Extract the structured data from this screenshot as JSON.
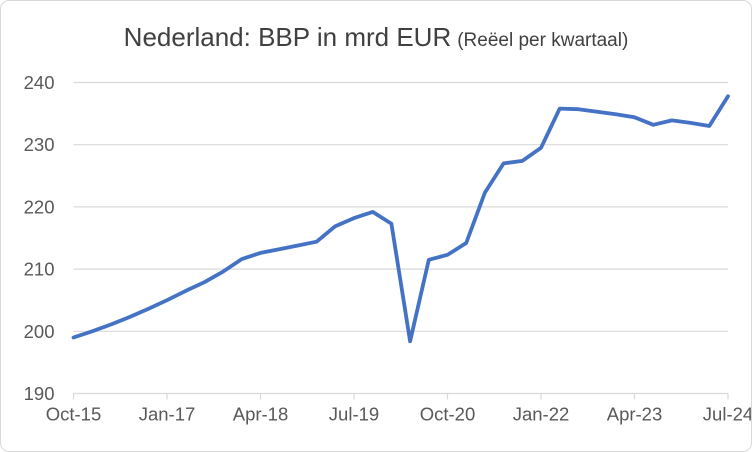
{
  "title": {
    "main": "Nederland: BBP in mrd EUR",
    "sub": "(Reëel per kwartaal)"
  },
  "colors": {
    "line": "#4472C4",
    "grid": "#D9D9D9",
    "axis": "#D9D9D9",
    "title_text": "#404040",
    "tick_text": "#595959",
    "background": "#FFFFFF",
    "border": "#D9D9D9"
  },
  "chart_data": {
    "type": "line",
    "title": "Nederland: BBP in mrd EUR (Reëel per kwartaal)",
    "xlabel": "",
    "ylabel": "",
    "legend": "none",
    "grid": "horizontal",
    "ylim": [
      190,
      240
    ],
    "y_ticks": [
      190,
      200,
      210,
      220,
      230,
      240
    ],
    "x_tick_labels": [
      "Oct-15",
      "Jan-17",
      "Apr-18",
      "Jul-19",
      "Oct-20",
      "Jan-22",
      "Apr-23",
      "Jul-24"
    ],
    "x_tick_indices": [
      0,
      5,
      10,
      15,
      20,
      25,
      30,
      35
    ],
    "x_labels": [
      "Oct-15",
      "Jan-16",
      "Apr-16",
      "Jul-16",
      "Oct-16",
      "Jan-17",
      "Apr-17",
      "Jul-17",
      "Oct-17",
      "Jan-18",
      "Apr-18",
      "Jul-18",
      "Oct-18",
      "Jan-19",
      "Apr-19",
      "Jul-19",
      "Oct-19",
      "Jan-20",
      "Apr-20",
      "Jul-20",
      "Oct-20",
      "Jan-21",
      "Apr-21",
      "Jul-21",
      "Oct-21",
      "Jan-22",
      "Apr-22",
      "Jul-22",
      "Oct-22",
      "Jan-23",
      "Apr-23",
      "Jul-23",
      "Oct-23",
      "Jan-24",
      "Apr-24",
      "Jul-24"
    ],
    "values": [
      199.0,
      200.0,
      201.1,
      202.3,
      203.6,
      205.0,
      206.5,
      207.9,
      209.6,
      211.6,
      212.6,
      213.2,
      213.8,
      214.4,
      216.9,
      218.2,
      219.2,
      217.3,
      198.4,
      211.5,
      212.3,
      214.2,
      222.3,
      227.0,
      227.4,
      229.5,
      235.8,
      235.7,
      235.3,
      234.9,
      234.4,
      233.2,
      233.9,
      233.5,
      233.0,
      237.8
    ]
  }
}
